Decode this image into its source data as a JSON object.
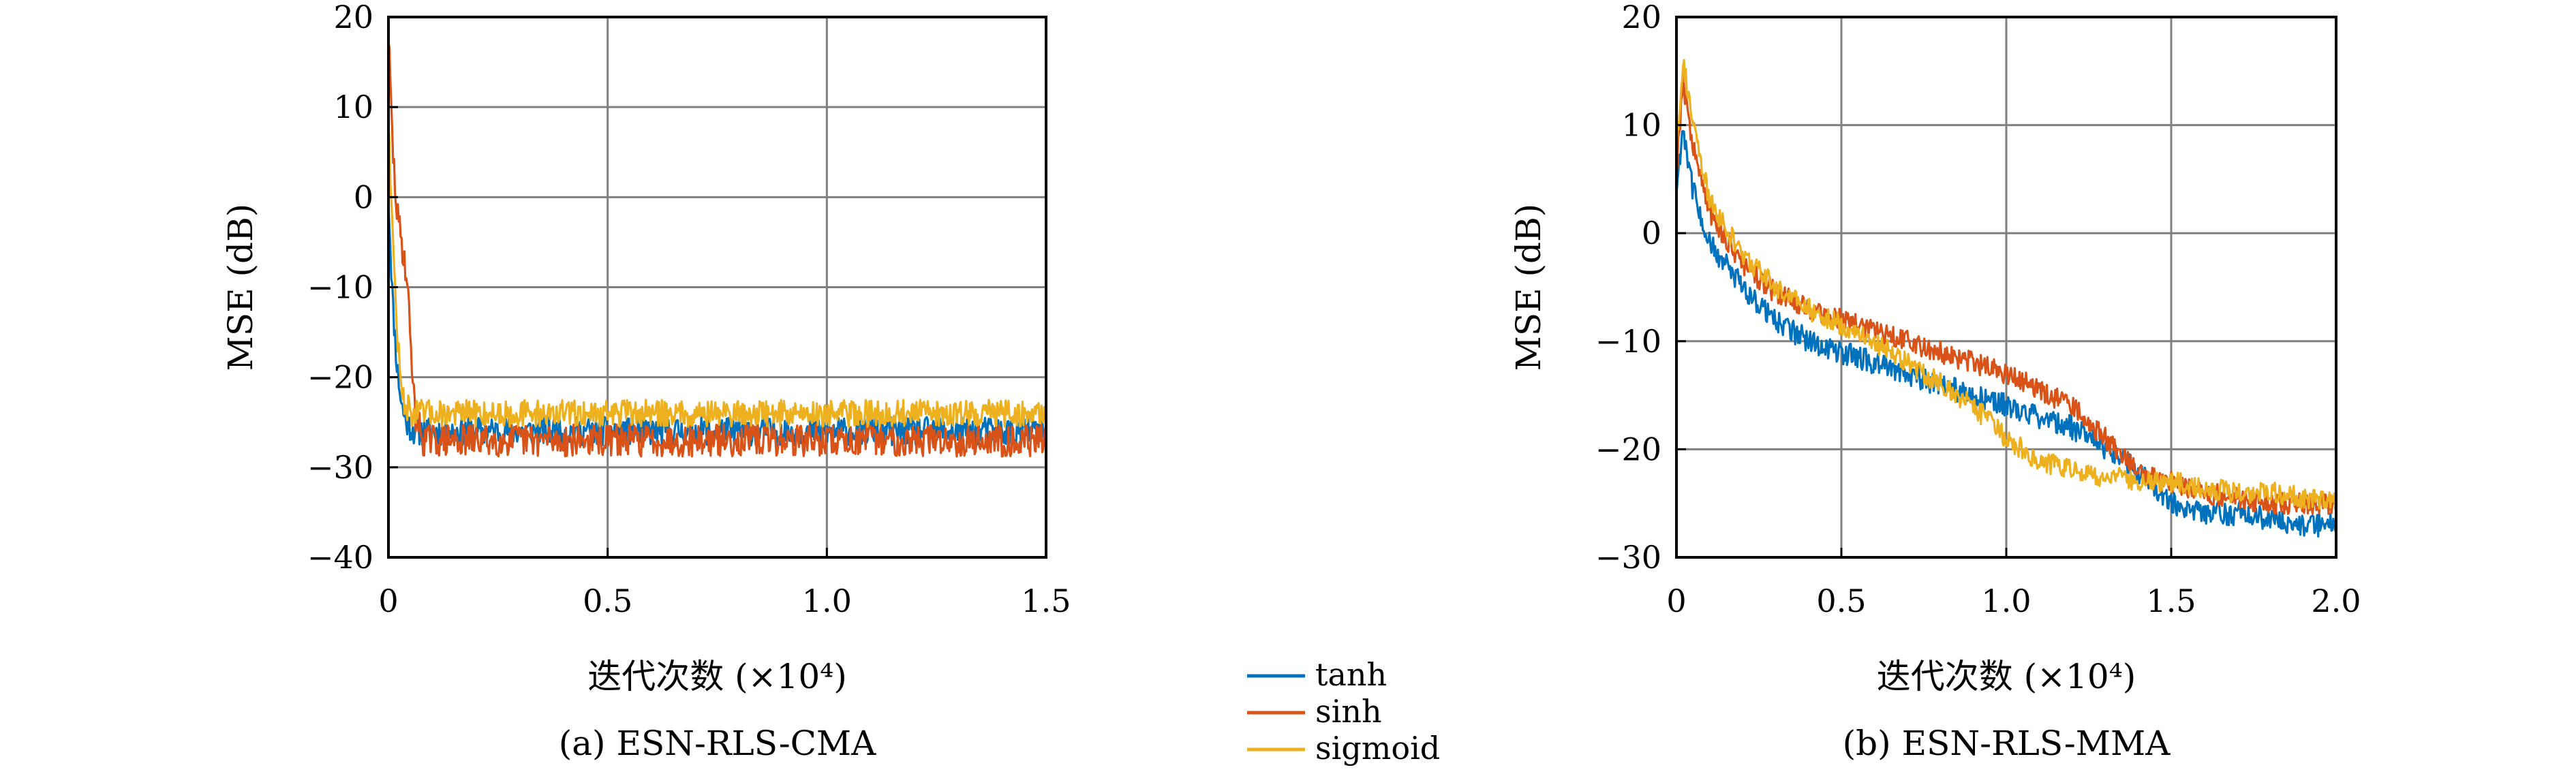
{
  "colors": {
    "tanh": "#0072BD",
    "sinh": "#D95319",
    "sigmoid": "#EDB120",
    "grid": "#808080"
  },
  "legend": {
    "placement": "bottom-center"
  },
  "chart_data": [
    {
      "type": "line",
      "caption": "(a) ESN-RLS-CMA",
      "xlabel": "迭代次数 (×10⁴)",
      "ylabel": "MSE (dB)",
      "xlim": [
        0,
        1.5
      ],
      "ylim": [
        -40,
        20
      ],
      "xticks": [
        0,
        0.5,
        1.0,
        1.5
      ],
      "xtick_labels": [
        "0",
        "0.5",
        "1.0",
        "1.5"
      ],
      "yticks": [
        20,
        10,
        0,
        -10,
        -20,
        -30,
        -40
      ],
      "ytick_labels": [
        "20",
        "10",
        "0",
        "−10",
        "−20",
        "−30",
        "−40"
      ],
      "grid": true,
      "series": [
        {
          "name": "tanh",
          "x": [
            0,
            0.01,
            0.02,
            0.03,
            0.04,
            0.06,
            0.1,
            0.3,
            0.6,
            1.0,
            1.5
          ],
          "y": [
            0,
            -12,
            -19,
            -23,
            -25,
            -26,
            -26,
            -26,
            -26,
            -26,
            -26
          ]
        },
        {
          "name": "sinh",
          "x": [
            0,
            0.01,
            0.02,
            0.03,
            0.04,
            0.05,
            0.06,
            0.08,
            0.1,
            0.3,
            0.6,
            1.0,
            1.5
          ],
          "y": [
            18,
            5,
            -2,
            -5,
            -8,
            -15,
            -24,
            -27,
            -27,
            -27,
            -27,
            -27,
            -27
          ]
        },
        {
          "name": "sigmoid",
          "x": [
            0,
            0.01,
            0.02,
            0.03,
            0.05,
            0.1,
            0.3,
            0.6,
            1.0,
            1.5
          ],
          "y": [
            9,
            -5,
            -15,
            -22,
            -24,
            -24,
            -24,
            -24,
            -24,
            -24
          ]
        }
      ]
    },
    {
      "type": "line",
      "caption": "(b) ESN-RLS-MMA",
      "xlabel": "迭代次数 (×10⁴)",
      "ylabel": "MSE (dB)",
      "xlim": [
        0,
        2.0
      ],
      "ylim": [
        -30,
        20
      ],
      "xticks": [
        0,
        0.5,
        1.0,
        1.5,
        2.0
      ],
      "xtick_labels": [
        "0",
        "0.5",
        "1.0",
        "1.5",
        "2.0"
      ],
      "yticks": [
        20,
        10,
        0,
        -10,
        -20,
        -30
      ],
      "ytick_labels": [
        "20",
        "10",
        "0",
        "−10",
        "−20",
        "−30"
      ],
      "grid": true,
      "series": [
        {
          "name": "tanh",
          "x": [
            0,
            0.02,
            0.05,
            0.1,
            0.2,
            0.3,
            0.4,
            0.5,
            0.6,
            0.7,
            0.8,
            0.9,
            1.0,
            1.1,
            1.2,
            1.3,
            1.4,
            1.5,
            1.6,
            1.7,
            1.8,
            1.9,
            2.0
          ],
          "y": [
            4,
            10,
            4,
            -1,
            -5,
            -8,
            -10,
            -11,
            -12,
            -13,
            -14,
            -15,
            -16,
            -17,
            -18,
            -20,
            -22,
            -25,
            -26,
            -26,
            -26.5,
            -27,
            -27
          ]
        },
        {
          "name": "sinh",
          "x": [
            0,
            0.02,
            0.05,
            0.1,
            0.2,
            0.3,
            0.4,
            0.5,
            0.6,
            0.7,
            0.8,
            0.9,
            1.0,
            1.1,
            1.2,
            1.3,
            1.4,
            1.5,
            1.6,
            1.7,
            1.8,
            1.9,
            2.0
          ],
          "y": [
            6,
            14,
            8,
            2,
            -3,
            -5.5,
            -7,
            -8,
            -9,
            -10,
            -11,
            -12,
            -13,
            -14.5,
            -16,
            -19,
            -22,
            -23,
            -24,
            -24.5,
            -25,
            -25,
            -25
          ]
        },
        {
          "name": "sigmoid",
          "x": [
            0,
            0.02,
            0.05,
            0.1,
            0.2,
            0.3,
            0.4,
            0.5,
            0.6,
            0.7,
            0.8,
            0.9,
            1.0,
            1.1,
            1.2,
            1.3,
            1.4,
            1.5,
            1.6,
            1.7,
            1.8,
            1.9,
            2.0
          ],
          "y": [
            8,
            16,
            10,
            3,
            -2,
            -5,
            -7,
            -8.5,
            -10,
            -12,
            -14,
            -16,
            -19,
            -21,
            -22,
            -22.5,
            -23,
            -23,
            -23.5,
            -24,
            -24,
            -24.5,
            -25
          ]
        }
      ]
    }
  ]
}
